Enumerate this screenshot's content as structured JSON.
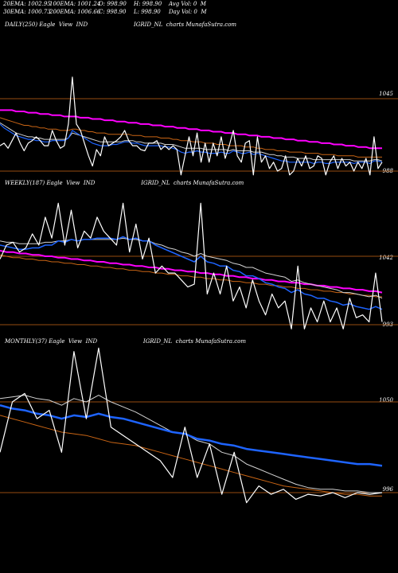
{
  "header": {
    "row1": [
      "20EMA: 1002.95",
      "100EMA: 1001.24",
      "O: 998.90",
      "H: 998.90",
      "Avg Vol: 0  M"
    ],
    "row2": [
      "30EMA: 1000.73",
      "200EMA: 1006.66",
      "C: 998.90",
      "L: 998.90",
      "Day Vol: 0  M"
    ]
  },
  "colors": {
    "background": "#000000",
    "price": "#ffffff",
    "ema_fast": "#1e64ff",
    "ema_mid": "#d2d2d2",
    "ema_slow": "#c86414",
    "ema_long": "#ff00ff",
    "level_line": "#c86414"
  },
  "chart_data": [
    {
      "type": "line",
      "title": "DAILY(250) Eagle  View  IND                          IGRID_NL  charts MunafaSutra.com",
      "y_labels": [
        "1045",
        "988"
      ],
      "y_ticks": [
        1045,
        988
      ],
      "series": [
        {
          "name": "",
          "color": "#ffffff",
          "values": [
            1008,
            1010,
            1006,
            1012,
            1018,
            1010,
            1004,
            1010,
            1012,
            1015,
            1012,
            1008,
            1008,
            1020,
            1012,
            1006,
            1008,
            1025,
            1062,
            1025,
            1020,
            1010,
            1000,
            992,
            1005,
            1000,
            1015,
            1008,
            1010,
            1012,
            1015,
            1020,
            1012,
            1008,
            1008,
            1005,
            1004,
            1010,
            1010,
            1012,
            1005,
            1008,
            1005,
            1008,
            1005,
            985,
            1000,
            1015,
            1000,
            1018,
            995,
            1010,
            995,
            1010,
            1000,
            1015,
            998,
            1008,
            1020,
            1000,
            995,
            1010,
            1012,
            985,
            1015,
            995,
            1000,
            990,
            995,
            988,
            990,
            1000,
            985,
            988,
            998,
            992,
            1000,
            990,
            992,
            1000,
            998,
            985,
            995,
            1000,
            990,
            998,
            992,
            995,
            988,
            995,
            990,
            998,
            985,
            1015,
            990,
            995
          ]
        },
        {
          "name": "",
          "color": "#1e64ff",
          "values": [
            1025,
            1022,
            1020,
            1018,
            1016,
            1015,
            1014,
            1013,
            1013,
            1012,
            1012,
            1011,
            1011,
            1012,
            1012,
            1012,
            1012,
            1014,
            1020,
            1018,
            1016,
            1014,
            1012,
            1010,
            1009,
            1008,
            1008,
            1008,
            1009,
            1009,
            1010,
            1011,
            1011,
            1010,
            1010,
            1009,
            1008,
            1008,
            1008,
            1008,
            1008,
            1007,
            1007,
            1006,
            1005,
            1003,
            1002,
            1003,
            1003,
            1004,
            1003,
            1003,
            1002,
            1002,
            1002,
            1003,
            1002,
            1002,
            1004,
            1003,
            1002,
            1002,
            1003,
            1001,
            1002,
            1001,
            1000,
            999,
            998,
            997,
            996,
            996,
            995,
            995,
            995,
            995,
            995,
            995,
            994,
            995,
            995,
            994,
            994,
            995,
            995,
            995,
            995,
            995,
            994,
            995,
            995,
            995,
            994,
            996,
            996,
            995
          ]
        },
        {
          "name": "",
          "color": "#d2d2d2",
          "values": [
            1026,
            1024,
            1022,
            1020,
            1018,
            1017,
            1016,
            1015,
            1015,
            1014,
            1014,
            1013,
            1013,
            1013,
            1013,
            1013,
            1013,
            1014,
            1018,
            1017,
            1016,
            1015,
            1014,
            1013,
            1012,
            1011,
            1011,
            1011,
            1011,
            1011,
            1011,
            1012,
            1012,
            1012,
            1011,
            1011,
            1010,
            1010,
            1010,
            1010,
            1010,
            1009,
            1009,
            1009,
            1008,
            1007,
            1006,
            1006,
            1006,
            1006,
            1006,
            1005,
            1005,
            1005,
            1005,
            1005,
            1005,
            1004,
            1005,
            1004,
            1004,
            1004,
            1004,
            1003,
            1003,
            1003,
            1002,
            1001,
            1001,
            1000,
            1000,
            999,
            999,
            999,
            998,
            998,
            998,
            998,
            997,
            997,
            997,
            997,
            997,
            997,
            997,
            997,
            997,
            997,
            996,
            996,
            996,
            996,
            996,
            997,
            997,
            996
          ]
        },
        {
          "name": "",
          "color": "#c86414",
          "values": [
            1030,
            1029,
            1028,
            1027,
            1026,
            1025,
            1024,
            1024,
            1023,
            1023,
            1022,
            1022,
            1021,
            1021,
            1021,
            1020,
            1020,
            1020,
            1021,
            1021,
            1020,
            1020,
            1019,
            1019,
            1018,
            1018,
            1018,
            1017,
            1017,
            1017,
            1017,
            1017,
            1017,
            1016,
            1016,
            1016,
            1015,
            1015,
            1015,
            1015,
            1014,
            1014,
            1014,
            1013,
            1013,
            1012,
            1012,
            1012,
            1011,
            1011,
            1011,
            1010,
            1010,
            1010,
            1009,
            1009,
            1009,
            1008,
            1008,
            1008,
            1008,
            1007,
            1007,
            1007,
            1006,
            1006,
            1005,
            1005,
            1005,
            1004,
            1004,
            1004,
            1003,
            1003,
            1003,
            1003,
            1002,
            1002,
            1002,
            1002,
            1001,
            1001,
            1001,
            1001,
            1000,
            1000,
            1000,
            1000,
            1000,
            999,
            999,
            999,
            999,
            999,
            999,
            999
          ]
        },
        {
          "name": "",
          "color": "#ff00ff",
          "values": [
            1036,
            1036,
            1036,
            1036,
            1035,
            1035,
            1035,
            1034,
            1034,
            1034,
            1033,
            1033,
            1033,
            1032,
            1032,
            1032,
            1031,
            1031,
            1031,
            1031,
            1030,
            1030,
            1030,
            1029,
            1029,
            1029,
            1028,
            1028,
            1028,
            1027,
            1027,
            1027,
            1026,
            1026,
            1026,
            1025,
            1025,
            1025,
            1024,
            1024,
            1024,
            1023,
            1023,
            1023,
            1022,
            1022,
            1022,
            1021,
            1021,
            1021,
            1020,
            1020,
            1020,
            1019,
            1019,
            1019,
            1018,
            1018,
            1018,
            1017,
            1017,
            1017,
            1016,
            1016,
            1016,
            1015,
            1015,
            1015,
            1014,
            1014,
            1014,
            1013,
            1013,
            1013,
            1012,
            1012,
            1012,
            1011,
            1011,
            1011,
            1010,
            1010,
            1010,
            1009,
            1009,
            1009,
            1008,
            1008,
            1008,
            1007,
            1007,
            1007,
            1006,
            1006,
            1006,
            1006
          ]
        }
      ]
    },
    {
      "type": "line",
      "title": "WEEKLY(187) Eagle  View  IND                          IGRID_NL  charts MunafaSutra.com",
      "y_labels": [
        "1042",
        "993"
      ],
      "y_ticks": [
        1042,
        993
      ],
      "series": [
        {
          "name": "",
          "color": "#ffffff",
          "values": [
            1040,
            1050,
            1052,
            1045,
            1048,
            1058,
            1050,
            1070,
            1055,
            1080,
            1050,
            1075,
            1048,
            1060,
            1055,
            1070,
            1060,
            1055,
            1050,
            1080,
            1045,
            1065,
            1040,
            1055,
            1030,
            1035,
            1030,
            1030,
            1025,
            1020,
            1022,
            1080,
            1015,
            1030,
            1015,
            1035,
            1010,
            1020,
            1005,
            1025,
            1010,
            1000,
            1015,
            1005,
            1010,
            990,
            1035,
            990,
            1005,
            995,
            1010,
            995,
            1005,
            990,
            1012,
            998,
            1000,
            995,
            1030,
            995
          ]
        },
        {
          "name": "",
          "color": "#1e64ff",
          "values": [
            1050,
            1049,
            1048,
            1047,
            1047,
            1048,
            1048,
            1050,
            1050,
            1053,
            1052,
            1054,
            1053,
            1054,
            1054,
            1055,
            1055,
            1055,
            1054,
            1056,
            1054,
            1055,
            1053,
            1053,
            1050,
            1048,
            1046,
            1044,
            1042,
            1040,
            1038,
            1042,
            1038,
            1037,
            1035,
            1035,
            1032,
            1031,
            1028,
            1028,
            1026,
            1023,
            1022,
            1020,
            1019,
            1016,
            1018,
            1015,
            1014,
            1012,
            1012,
            1010,
            1009,
            1007,
            1008,
            1006,
            1005,
            1004,
            1006,
            1004
          ]
        },
        {
          "name": "",
          "color": "#d2d2d2",
          "values": [
            1053,
            1052,
            1052,
            1051,
            1051,
            1051,
            1051,
            1052,
            1052,
            1053,
            1053,
            1054,
            1053,
            1054,
            1054,
            1054,
            1054,
            1054,
            1054,
            1055,
            1054,
            1054,
            1053,
            1053,
            1051,
            1050,
            1048,
            1047,
            1045,
            1044,
            1042,
            1044,
            1042,
            1041,
            1040,
            1039,
            1037,
            1036,
            1034,
            1034,
            1032,
            1030,
            1029,
            1028,
            1027,
            1024,
            1025,
            1023,
            1022,
            1021,
            1020,
            1019,
            1018,
            1016,
            1016,
            1015,
            1014,
            1013,
            1014,
            1012
          ]
        },
        {
          "name": "",
          "color": "#c86414",
          "values": [
            1043,
            1042,
            1041,
            1041,
            1040,
            1040,
            1039,
            1039,
            1038,
            1038,
            1037,
            1037,
            1036,
            1036,
            1035,
            1035,
            1034,
            1034,
            1033,
            1033,
            1032,
            1032,
            1031,
            1031,
            1030,
            1030,
            1029,
            1029,
            1028,
            1028,
            1027,
            1027,
            1026,
            1026,
            1025,
            1025,
            1024,
            1024,
            1023,
            1023,
            1022,
            1022,
            1021,
            1021,
            1020,
            1020,
            1019,
            1019,
            1018,
            1018,
            1017,
            1017,
            1016,
            1016,
            1015,
            1015,
            1014,
            1014,
            1013,
            1013
          ]
        },
        {
          "name": "",
          "color": "#ff00ff",
          "values": [
            1046,
            1045,
            1045,
            1044,
            1044,
            1043,
            1043,
            1042,
            1042,
            1041,
            1041,
            1040,
            1040,
            1039,
            1039,
            1038,
            1038,
            1037,
            1037,
            1036,
            1036,
            1035,
            1035,
            1034,
            1034,
            1033,
            1033,
            1032,
            1032,
            1031,
            1031,
            1030,
            1030,
            1029,
            1029,
            1028,
            1028,
            1027,
            1027,
            1026,
            1026,
            1025,
            1025,
            1024,
            1024,
            1023,
            1023,
            1022,
            1022,
            1021,
            1021,
            1020,
            1020,
            1019,
            1019,
            1018,
            1018,
            1017,
            1017,
            1016
          ]
        }
      ]
    },
    {
      "type": "line",
      "title": "MONTHLY(37) Eagle  View  IND                          IGRID_NL  charts MunafaSutra.com",
      "y_labels": [
        "1050",
        "996"
      ],
      "y_ticks": [
        1050,
        996
      ],
      "series": [
        {
          "name": "",
          "color": "#ffffff",
          "values": [
            1020,
            1050,
            1055,
            1040,
            1045,
            1020,
            1080,
            1040,
            1082,
            1035,
            1030,
            1025,
            1020,
            1015,
            1005,
            1035,
            1005,
            1025,
            995,
            1020,
            990,
            1000,
            995,
            998,
            992,
            995,
            994,
            996,
            993,
            996,
            995,
            996
          ]
        },
        {
          "name": "",
          "color": "#1e64ff",
          "values": [
            1048,
            1046,
            1045,
            1043,
            1042,
            1040,
            1042,
            1041,
            1043,
            1041,
            1040,
            1038,
            1036,
            1034,
            1032,
            1031,
            1028,
            1027,
            1025,
            1024,
            1022,
            1021,
            1020,
            1019,
            1018,
            1017,
            1016,
            1015,
            1014,
            1013,
            1013,
            1012
          ]
        },
        {
          "name": "",
          "color": "#d2d2d2",
          "values": [
            1052,
            1053,
            1054,
            1052,
            1051,
            1048,
            1052,
            1050,
            1054,
            1050,
            1047,
            1044,
            1040,
            1036,
            1032,
            1031,
            1027,
            1025,
            1020,
            1018,
            1013,
            1010,
            1007,
            1004,
            1001,
            999,
            998,
            998,
            997,
            997,
            996,
            996
          ]
        },
        {
          "name": "",
          "color": "#c86414",
          "values": [
            1042,
            1040,
            1038,
            1036,
            1034,
            1032,
            1031,
            1030,
            1028,
            1026,
            1025,
            1024,
            1022,
            1020,
            1018,
            1016,
            1014,
            1012,
            1010,
            1008,
            1006,
            1004,
            1002,
            1000,
            999,
            998,
            997,
            996,
            995,
            995,
            994,
            994
          ]
        }
      ]
    }
  ]
}
